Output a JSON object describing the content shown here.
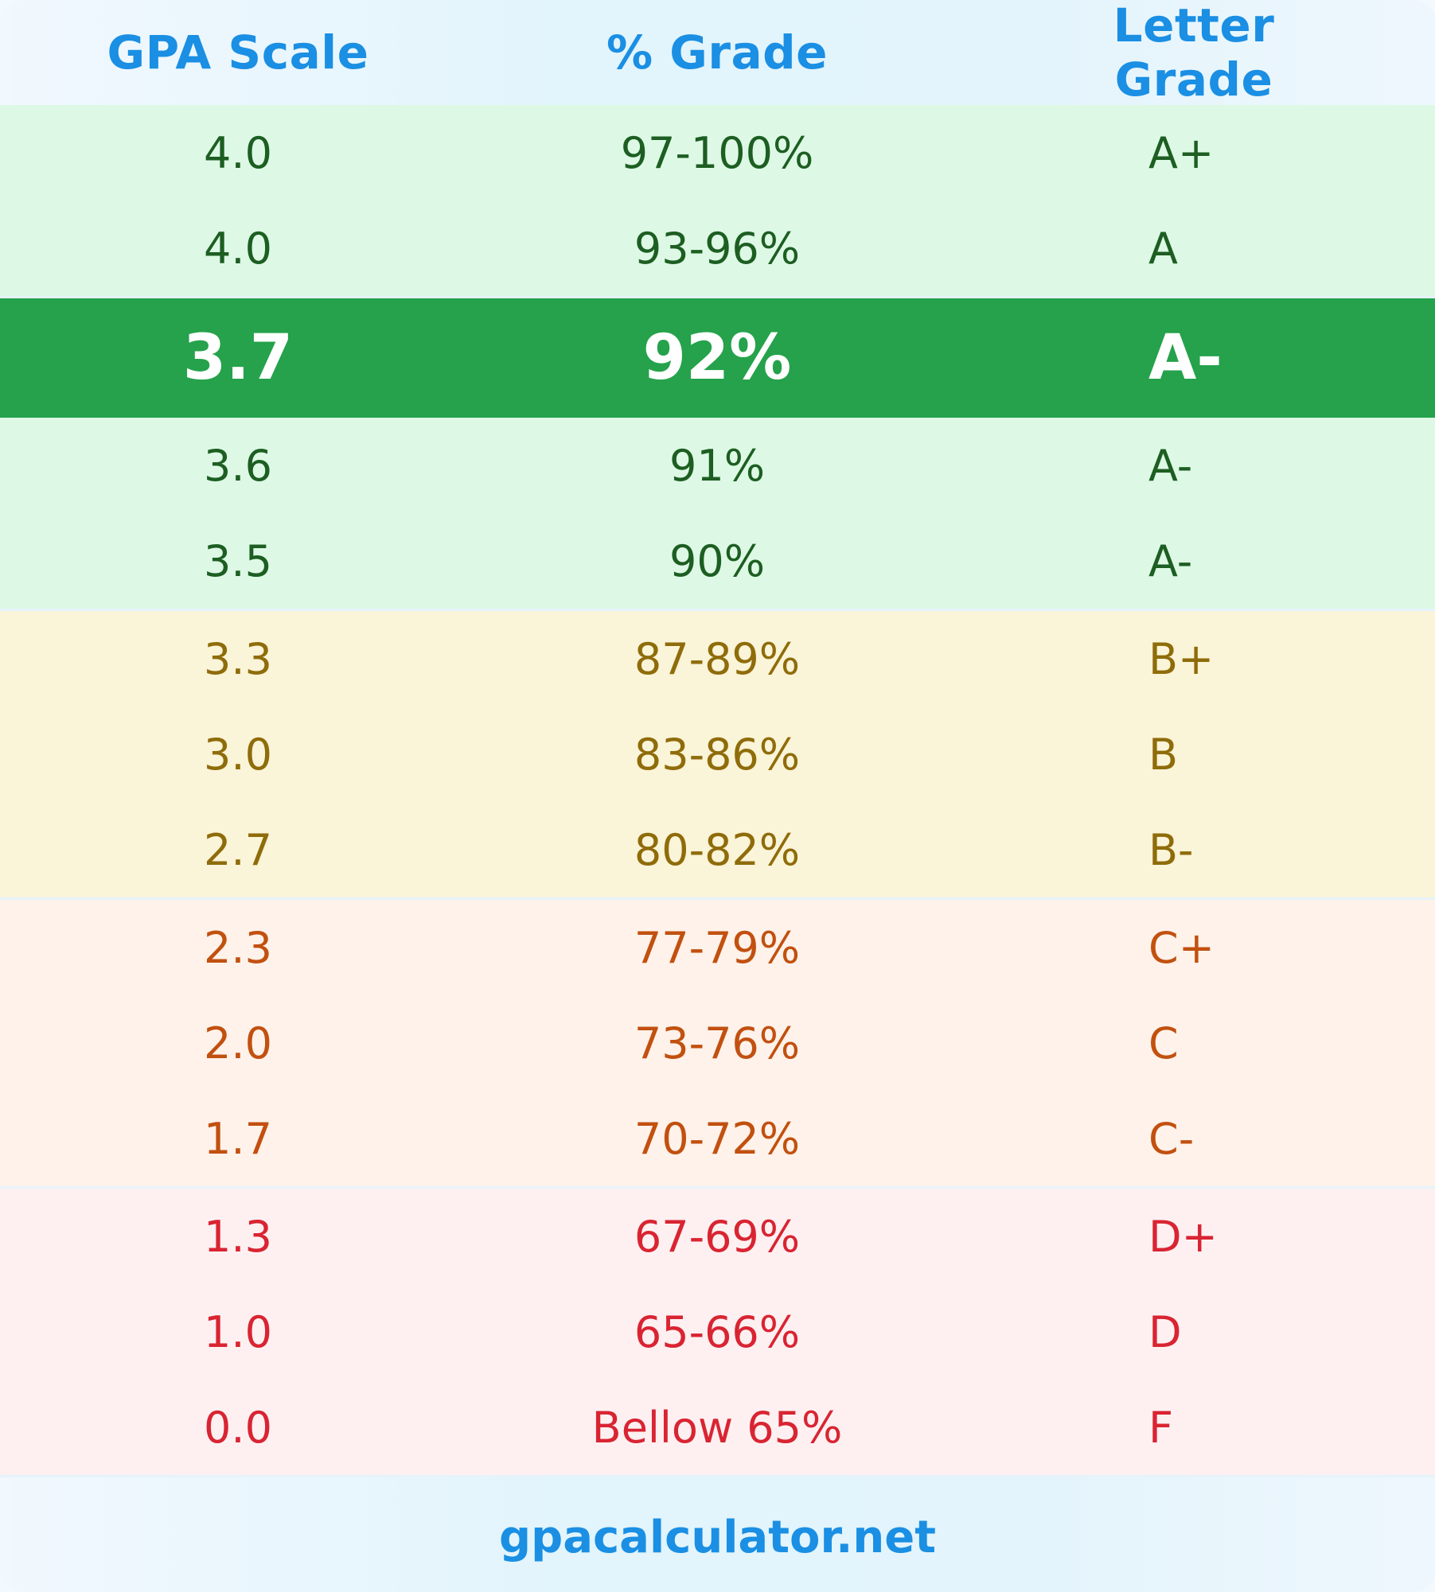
{
  "header": {
    "gpa": "GPA Scale",
    "percent": "% Grade",
    "letter": "Letter Grade"
  },
  "groups": [
    {
      "color": "green",
      "rows": [
        {
          "gpa": "4.0",
          "percent": "97-100%",
          "letter": "A+"
        },
        {
          "gpa": "4.0",
          "percent": "93-96%",
          "letter": "A"
        }
      ]
    },
    {
      "highlight": true,
      "rows": [
        {
          "gpa": "3.7",
          "percent": "92%",
          "letter": "A-"
        }
      ]
    },
    {
      "color": "green",
      "rows": [
        {
          "gpa": "3.6",
          "percent": "91%",
          "letter": "A-"
        },
        {
          "gpa": "3.5",
          "percent": "90%",
          "letter": "A-"
        }
      ]
    },
    {
      "color": "yellow",
      "rows": [
        {
          "gpa": "3.3",
          "percent": "87-89%",
          "letter": "B+"
        },
        {
          "gpa": "3.0",
          "percent": "83-86%",
          "letter": "B"
        },
        {
          "gpa": "2.7",
          "percent": "80-82%",
          "letter": "B-"
        }
      ]
    },
    {
      "color": "orange",
      "rows": [
        {
          "gpa": "2.3",
          "percent": "77-79%",
          "letter": "C+"
        },
        {
          "gpa": "2.0",
          "percent": "73-76%",
          "letter": "C"
        },
        {
          "gpa": "1.7",
          "percent": "70-72%",
          "letter": "C-"
        }
      ]
    },
    {
      "color": "red",
      "rows": [
        {
          "gpa": "1.3",
          "percent": "67-69%",
          "letter": "D+"
        },
        {
          "gpa": "1.0",
          "percent": "65-66%",
          "letter": "D"
        },
        {
          "gpa": "0.0",
          "percent": "Bellow 65%",
          "letter": "F"
        }
      ]
    }
  ],
  "footer": {
    "site": "gpacalculator.net"
  },
  "colors": {
    "accent": "#1a8fe3",
    "highlight": "#25a24b",
    "green_text": "#1d5e22",
    "yellow_text": "#8f6c0a",
    "orange_text": "#c2500f",
    "red_text": "#d92432"
  }
}
